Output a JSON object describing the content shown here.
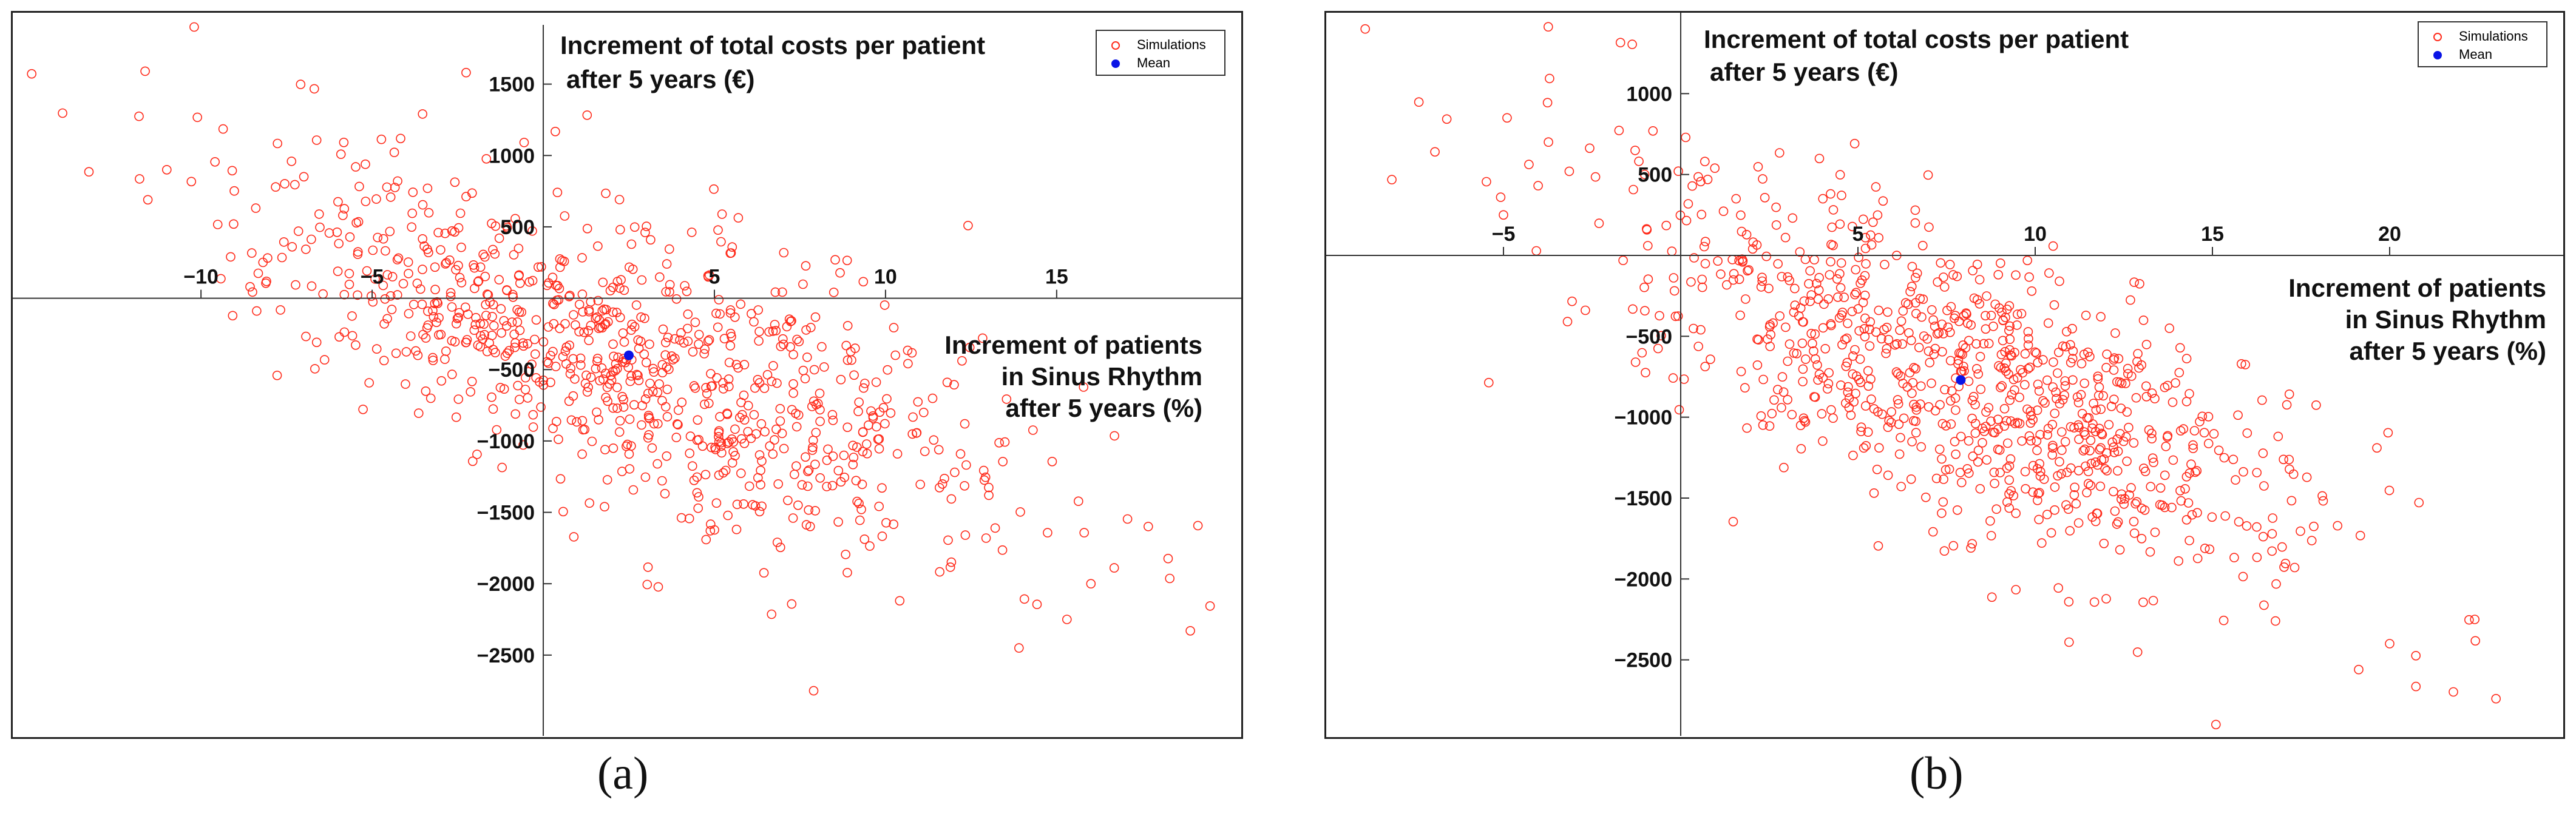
{
  "figure": {
    "colors": {
      "simulations": "#ff2a1a",
      "mean": "#0a14e6",
      "axis": "#333333",
      "text": "#111111"
    }
  },
  "panels": [
    {
      "caption": "(a)",
      "title_line1": "Increment of total costs per patient",
      "title_line2": "after 5 years (€)",
      "xlabel_line1": "Increment of patients",
      "xlabel_line2": "in Sinus Rhythm",
      "xlabel_line3": "after 5 years (%)",
      "legend_simulations": "Simulations",
      "legend_mean": "Mean"
    },
    {
      "caption": "(b)",
      "title_line1": "Increment of total costs per patient",
      "title_line2": "after 5 years (€)",
      "xlabel_line1": "Increment of patients",
      "xlabel_line2": "in Sinus Rhythm",
      "xlabel_line3": "after 5 years (%)",
      "legend_simulations": "Simulations",
      "legend_mean": "Mean"
    }
  ],
  "chart_data": [
    {
      "type": "scatter",
      "title": "Increment of total costs per patient after 5 years (€)",
      "xlabel": "Increment of patients in Sinus Rhythm after 5 years (%)",
      "ylabel": "Increment of total costs per patient after 5 years (€)",
      "xlim": [
        -15.5,
        20.5
      ],
      "ylim": [
        -3100,
        2000
      ],
      "xticks": [
        -10,
        -5,
        5,
        10,
        15
      ],
      "yticks": [
        1500,
        1000,
        500,
        -500,
        -1000,
        -1500,
        -2000,
        -2500
      ],
      "legend": [
        "Simulations",
        "Mean"
      ],
      "legend_position": "top-right",
      "mean": {
        "x": 2.5,
        "y": -400
      },
      "simulations": {
        "n": 900,
        "x_mean": 2.5,
        "x_sd": 5.5,
        "y_mean": -400,
        "y_sd": 650,
        "correlation": -0.65,
        "seed": 7,
        "anchor_points": [
          {
            "x": -10.2,
            "y": 1900
          },
          {
            "x": -11.0,
            "y": 900
          },
          {
            "x": 7.9,
            "y": -2750
          },
          {
            "x": 15.3,
            "y": -2250
          },
          {
            "x": 13.9,
            "y": -2450
          },
          {
            "x": 16.0,
            "y": -2000
          }
        ]
      }
    },
    {
      "type": "scatter",
      "title": "Increment of total costs per patient after 5 years (€)",
      "xlabel": "Increment of patients in Sinus Rhythm after 5 years (%)",
      "ylabel": "Increment of total costs per patient after 5 years (€)",
      "xlim": [
        -10,
        25
      ],
      "ylim": [
        -3000,
        1500
      ],
      "xticks": [
        -5,
        5,
        10,
        15,
        20
      ],
      "yticks": [
        1000,
        500,
        -500,
        -1000,
        -1500,
        -2000,
        -2500
      ],
      "legend": [
        "Simulations",
        "Mean"
      ],
      "legend_position": "top-right",
      "mean": {
        "x": 7.9,
        "y": -770
      },
      "simulations": {
        "n": 900,
        "x_mean": 7.9,
        "x_sd": 5.0,
        "y_mean": -770,
        "y_sd": 620,
        "correlation": -0.7,
        "seed": 13,
        "anchor_points": [
          {
            "x": -8.9,
            "y": 1400
          },
          {
            "x": 15.1,
            "y": -2900
          },
          {
            "x": 23.0,
            "y": -2740
          },
          {
            "x": -5.0,
            "y": 250
          },
          {
            "x": 20.0,
            "y": -2400
          },
          {
            "x": 22.4,
            "y": -2250
          }
        ]
      }
    }
  ]
}
